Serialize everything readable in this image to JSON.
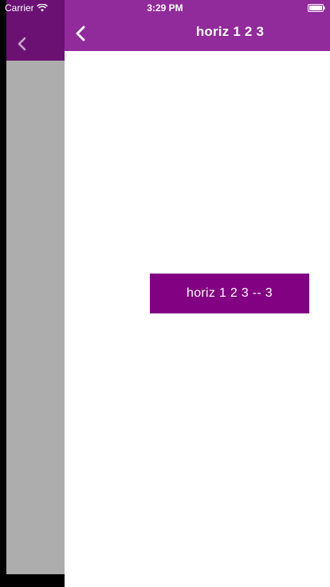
{
  "status_bar": {
    "carrier": "Carrier",
    "time": "3:29 PM",
    "wifi_icon": "wifi-icon",
    "battery_icon": "battery-icon"
  },
  "back_view": {
    "back_icon": "chevron-left-icon",
    "header_color": "#6a1173",
    "background_color": "#adadad"
  },
  "nav_bar": {
    "title": "horiz 1 2 3",
    "back_icon": "chevron-left-icon",
    "color": "#912a9b"
  },
  "content": {
    "button_label": "horiz 1 2 3 -- 3",
    "button_color": "#820082"
  }
}
